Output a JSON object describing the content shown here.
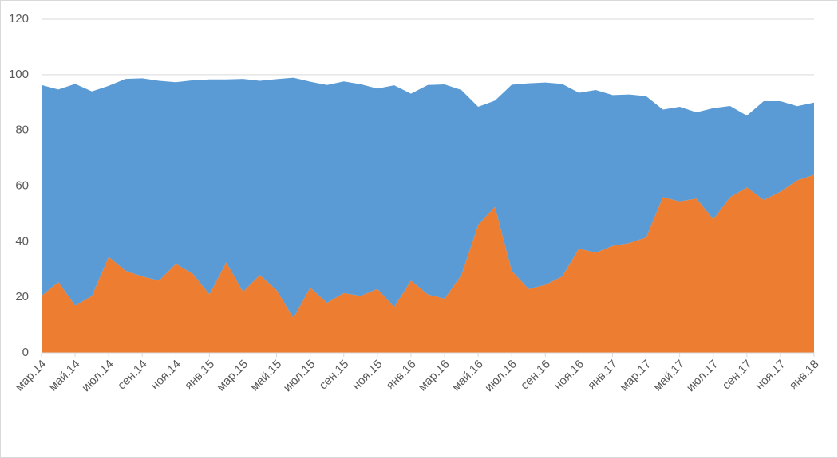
{
  "chart_data": {
    "type": "stacked_area",
    "categories": [
      "мар.14",
      null,
      "май.14",
      null,
      "июл.14",
      null,
      "сен.14",
      null,
      "ноя.14",
      null,
      "янв.15",
      null,
      "мар.15",
      null,
      "май.15",
      null,
      "июл.15",
      null,
      "сен.15",
      null,
      "ноя.15",
      null,
      "янв.16",
      null,
      "мар.16",
      null,
      "май.16",
      null,
      "июл.16",
      null,
      "сен.16",
      null,
      "ноя.16",
      null,
      "янв.17",
      null,
      "мар.17",
      null,
      "май.17",
      null,
      "июл.17",
      null,
      "сен.17",
      null,
      "ноя.17",
      null,
      "янв.18"
    ],
    "series": [
      {
        "color": "#ed7d31",
        "values": [
          20.5,
          25.5,
          17,
          20.5,
          34.5,
          29.5,
          27.5,
          26,
          32,
          28.5,
          21,
          32.5,
          22,
          28,
          22.5,
          12.5,
          23.5,
          18,
          21.5,
          20.5,
          23,
          16.5,
          26,
          21,
          19.5,
          28,
          46,
          52.5,
          29.5,
          23,
          24.5,
          27.5,
          37.5,
          36,
          38.5,
          39.5,
          41.5,
          56,
          54.5,
          55.5,
          48,
          56,
          59.5,
          55,
          58,
          62,
          64
        ]
      },
      {
        "color": "#5b9bd5",
        "values": [
          75.8,
          69.2,
          79.7,
          73.5,
          61.5,
          69,
          71.2,
          71.8,
          65.3,
          69.5,
          77.3,
          65.8,
          76.5,
          69.8,
          75.9,
          86.4,
          74,
          78.3,
          76.1,
          76.1,
          72,
          79.7,
          67.2,
          75.3,
          77,
          66.5,
          42.5,
          38.2,
          66.9,
          73.9,
          72.7,
          69.2,
          56,
          58.5,
          54.2,
          53.4,
          50.8,
          31.5,
          34,
          31,
          40,
          32.8,
          25.8,
          35.5,
          32.5,
          26.7,
          26
        ]
      }
    ],
    "ylim": [
      0,
      120
    ],
    "yticks": [
      0,
      20,
      40,
      60,
      80,
      100,
      120
    ],
    "grid": true
  }
}
